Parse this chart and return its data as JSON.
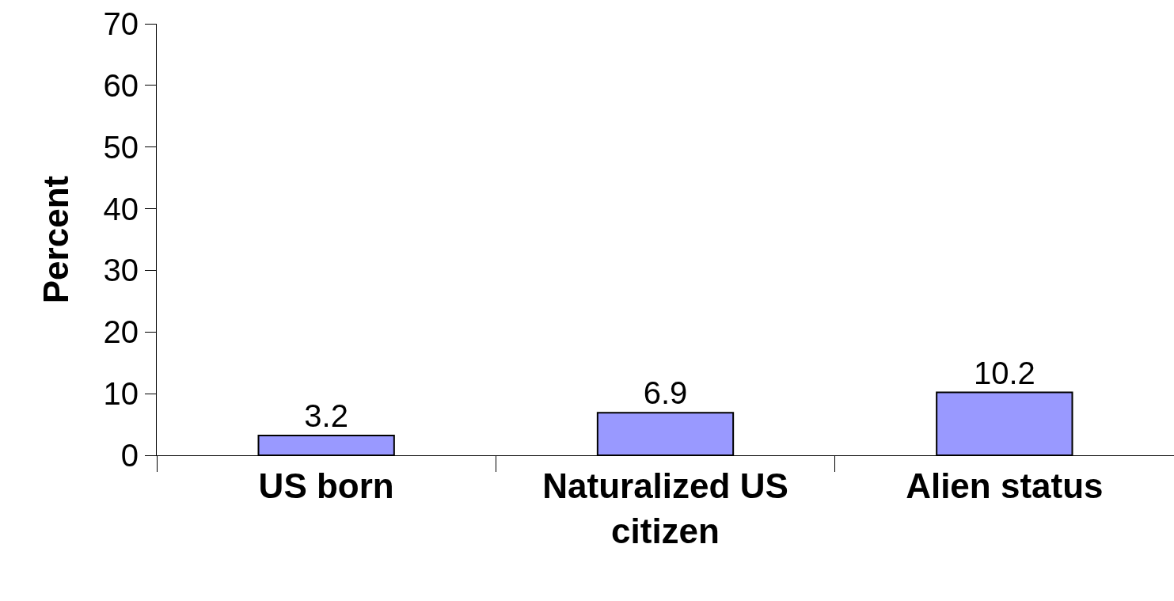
{
  "chart_data": {
    "type": "bar",
    "ylabel": "Percent",
    "categories": [
      "US born",
      "Naturalized US citizen",
      "Alien status"
    ],
    "values": [
      3.2,
      6.9,
      10.2
    ],
    "color": "#9999ff",
    "ylim": [
      0,
      70
    ],
    "yticks": [
      0,
      10,
      20,
      30,
      40,
      50,
      60,
      70
    ],
    "grid": false,
    "data_labels": true
  }
}
